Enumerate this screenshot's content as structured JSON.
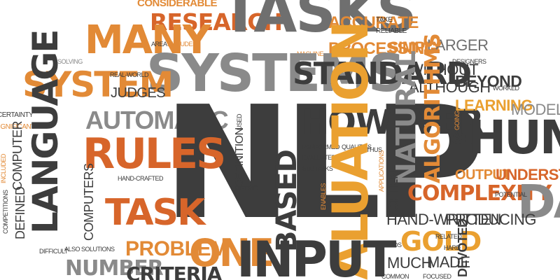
{
  "colors": {
    "dark": "#3d3d3d",
    "gray": "#8a8a8a",
    "orange": "#e28a36",
    "dark_orange": "#d7652a",
    "gold": "#eaa030",
    "background": "#ffffff"
  },
  "words": {
    "considerable": "CONSIDERABLE",
    "research": "RESEARCH",
    "tasks": "TASKS",
    "accurate": "ACCURATE",
    "take": "TAKE",
    "reliable": "RELIABLE",
    "many": "MANY",
    "area": "AREA",
    "includes": "INCLUDES",
    "machine": "MACHINE",
    "processing": "PROCESSING",
    "simply": "SIMPLY",
    "larger": "LARGER",
    "solving": "SOLVING",
    "systems": "SYSTEMS",
    "without": "WITHOUT",
    "designers": "DESIGNERS",
    "system": "SYSTEM",
    "real_world": "REAL-WORLD",
    "standard": "STANDARD",
    "although": "ALTHOUGH",
    "beyond": "BEYOND",
    "worked": "WORKED",
    "judges": "JUDGES",
    "certainty": "CERTAINTY",
    "significant": "SIGNIFICANT",
    "automatic": "AUTOMATIC",
    "nlp": "NLP",
    "used": "USED",
    "however": "HOWEVER",
    "learning": "LEARNING",
    "models": "MODELS",
    "language": "LANGUAGE",
    "going": "GOING",
    "computer": "COMPUTER",
    "rules": "RULES",
    "set": "SET",
    "human": "HUMAN",
    "natural": "NATURAL",
    "algorithms": "ALGORITHMS",
    "definition": "DEFINITION",
    "performed": "PERFORMED",
    "evaluated": "EVALUATED",
    "qualities": "QUALITIES",
    "thus": "THUS",
    "applications": "APPLICATIONS",
    "subtasks": "SUBTASKS",
    "included": "INCLUDED",
    "output": "OUTPUT",
    "understanding": "UNDERSTANDING",
    "hand_crafted": "HAND-CRAFTED",
    "metric": "METRIC",
    "computers": "COMPUTERS",
    "complexity": "COMPLEXITY",
    "data": "DAT",
    "potential": "POTENTIAL",
    "competitions": "COMPETITIONS",
    "defined": "DEFINED",
    "task": "TASK",
    "based": "BASED",
    "enables": "ENABLES",
    "evaluation": "ALUATION",
    "often": "OFTEN",
    "hand_written": "HAND-WRITTEN",
    "producing": "PRODUCING",
    "gold": "GOLD",
    "related": "RELATED",
    "needs": "NEEDS",
    "hard": "HARD",
    "difficult": "DIFFICULT",
    "also": "ALSO",
    "solutions": "SOLUTIONS",
    "problem": "PROBLEM",
    "one": "ONE",
    "input": "INPUT",
    "much": "MUCH",
    "made": "MADE",
    "devoted": "DEVOTED",
    "number": "NUMBER",
    "criteria": "CRITERIA",
    "common": "COMMON",
    "focused": "FOCUSED"
  }
}
